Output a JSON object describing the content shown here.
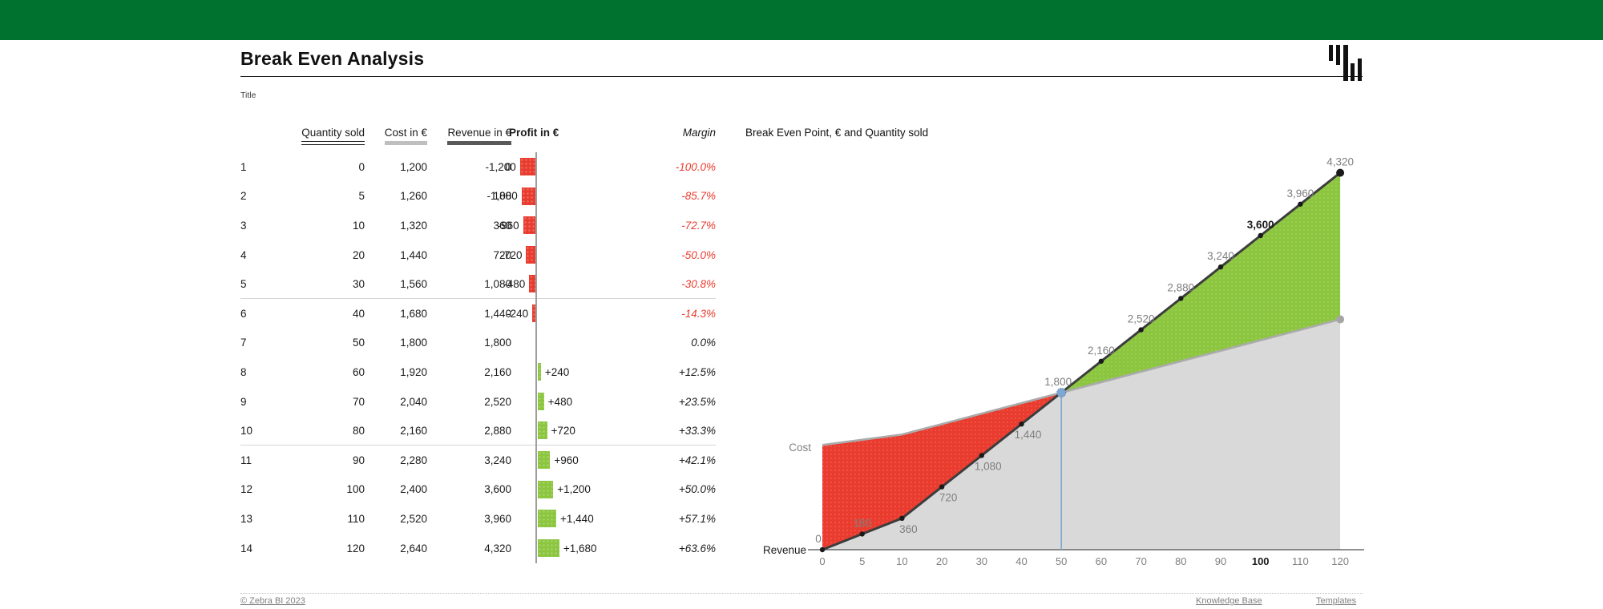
{
  "theme": {
    "top_bar_color": "#00722F",
    "negative_color": "#E93C2F",
    "positive_color": "#8CC63F",
    "neutral_area_color": "#D9D9D9",
    "revenue_line_color": "#3D3D3D",
    "cost_line_color": "#ABABAB",
    "breakeven_blue": "#7FA7D1"
  },
  "header": {
    "title": "Break Even Analysis",
    "subtitle": "Title"
  },
  "table": {
    "headers": {
      "quantity": "Quantity sold",
      "cost": "Cost in €",
      "revenue": "Revenue in €",
      "profit": "Profit in €",
      "margin": "Margin"
    },
    "rows": [
      {
        "n": "1",
        "qty": "0",
        "cost": "1,200",
        "revenue": "0",
        "profit": -1200,
        "profit_label": "-1,200",
        "margin": "-100.0%"
      },
      {
        "n": "2",
        "qty": "5",
        "cost": "1,260",
        "revenue": "180",
        "profit": -1080,
        "profit_label": "-1,080",
        "margin": "-85.7%"
      },
      {
        "n": "3",
        "qty": "10",
        "cost": "1,320",
        "revenue": "360",
        "profit": -960,
        "profit_label": "-960",
        "margin": "-72.7%"
      },
      {
        "n": "4",
        "qty": "20",
        "cost": "1,440",
        "revenue": "720",
        "profit": -720,
        "profit_label": "-720",
        "margin": "-50.0%"
      },
      {
        "n": "5",
        "qty": "30",
        "cost": "1,560",
        "revenue": "1,080",
        "profit": -480,
        "profit_label": "-480",
        "margin": "-30.8%"
      },
      {
        "n": "6",
        "qty": "40",
        "cost": "1,680",
        "revenue": "1,440",
        "profit": -240,
        "profit_label": "-240",
        "margin": "-14.3%"
      },
      {
        "n": "7",
        "qty": "50",
        "cost": "1,800",
        "revenue": "1,800",
        "profit": 0,
        "profit_label": "",
        "margin": "0.0%"
      },
      {
        "n": "8",
        "qty": "60",
        "cost": "1,920",
        "revenue": "2,160",
        "profit": 240,
        "profit_label": "+240",
        "margin": "+12.5%"
      },
      {
        "n": "9",
        "qty": "70",
        "cost": "2,040",
        "revenue": "2,520",
        "profit": 480,
        "profit_label": "+480",
        "margin": "+23.5%"
      },
      {
        "n": "10",
        "qty": "80",
        "cost": "2,160",
        "revenue": "2,880",
        "profit": 720,
        "profit_label": "+720",
        "margin": "+33.3%"
      },
      {
        "n": "11",
        "qty": "90",
        "cost": "2,280",
        "revenue": "3,240",
        "profit": 960,
        "profit_label": "+960",
        "margin": "+42.1%"
      },
      {
        "n": "12",
        "qty": "100",
        "cost": "2,400",
        "revenue": "3,600",
        "profit": 1200,
        "profit_label": "+1,200",
        "margin": "+50.0%"
      },
      {
        "n": "13",
        "qty": "110",
        "cost": "2,520",
        "revenue": "3,960",
        "profit": 1440,
        "profit_label": "+1,440",
        "margin": "+57.1%"
      },
      {
        "n": "14",
        "qty": "120",
        "cost": "2,640",
        "revenue": "4,320",
        "profit": 1680,
        "profit_label": "+1,680",
        "margin": "+63.6%"
      }
    ],
    "separators_after_rows": [
      5,
      10
    ]
  },
  "chart_data": {
    "type": "area",
    "title": "Break Even Point, € and Quantity sold",
    "categories": [
      0,
      5,
      10,
      20,
      30,
      40,
      50,
      60,
      70,
      80,
      90,
      100,
      110,
      120
    ],
    "series": [
      {
        "name": "Revenue",
        "values": [
          0,
          180,
          360,
          720,
          1080,
          1440,
          1800,
          2160,
          2520,
          2880,
          3240,
          3600,
          3960,
          4320
        ]
      },
      {
        "name": "Cost",
        "values": [
          1200,
          1260,
          1320,
          1440,
          1560,
          1680,
          1800,
          1920,
          2040,
          2160,
          2280,
          2400,
          2520,
          2640
        ]
      }
    ],
    "point_labels": [
      "0",
      "180",
      "360",
      "720",
      "1,080",
      "1,440",
      "1,800",
      "2,160",
      "2,520",
      "2,880",
      "3,240",
      "3,600",
      "3,960",
      "4,320"
    ],
    "label_side": [
      "above",
      "above",
      "below",
      "below",
      "below",
      "below",
      "above",
      "above",
      "above",
      "above",
      "above",
      "above",
      "above",
      "above"
    ],
    "break_even": {
      "index": 6,
      "quantity": 50,
      "value": 1800
    },
    "highlighted_category": 100,
    "axis_captions": {
      "cost": "Cost",
      "revenue": "Revenue"
    },
    "xlabel": "",
    "ylabel": "",
    "ylim": [
      0,
      4320
    ],
    "grid": false,
    "legend_position": "none"
  },
  "footer": {
    "copyright": "© Zebra BI 2023",
    "links": [
      {
        "label": "Knowledge Base"
      },
      {
        "label": "Templates"
      }
    ]
  }
}
